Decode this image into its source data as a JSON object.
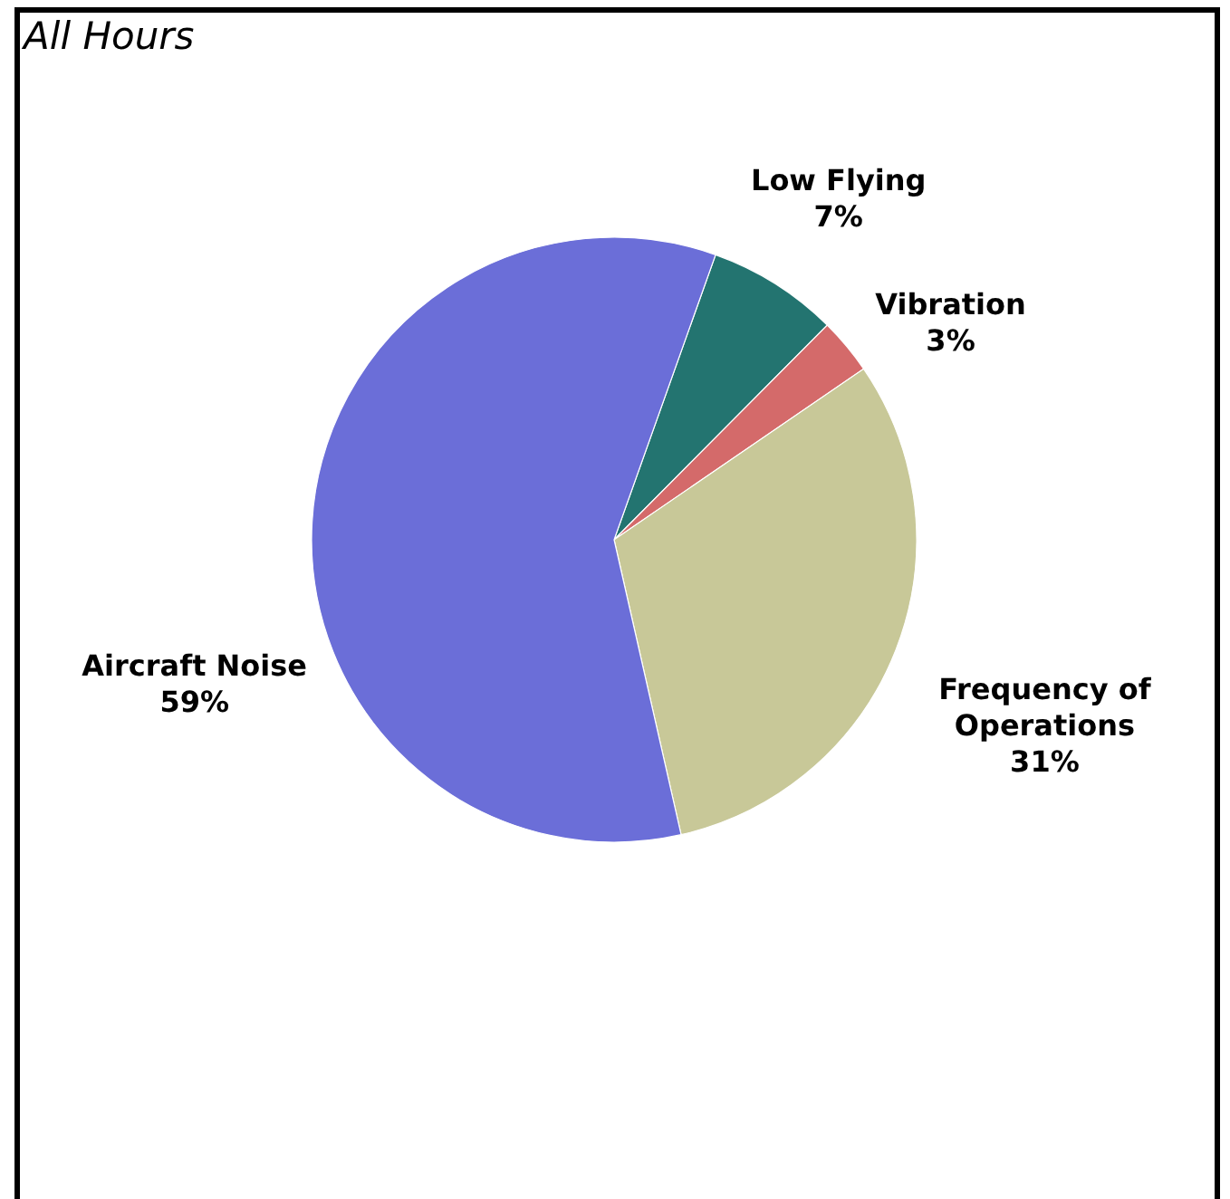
{
  "chart_data": {
    "type": "pie",
    "title": "All Hours",
    "categories": [
      "Low Flying",
      "Vibration",
      "Frequency of Operations",
      "Aircraft Noise"
    ],
    "values": [
      7,
      3,
      31,
      59
    ],
    "colors": [
      "#237470",
      "#d46a6a",
      "#c8c898",
      "#6b6ed8"
    ],
    "value_labels": [
      "7%",
      "3%",
      "31%",
      "59%"
    ]
  }
}
